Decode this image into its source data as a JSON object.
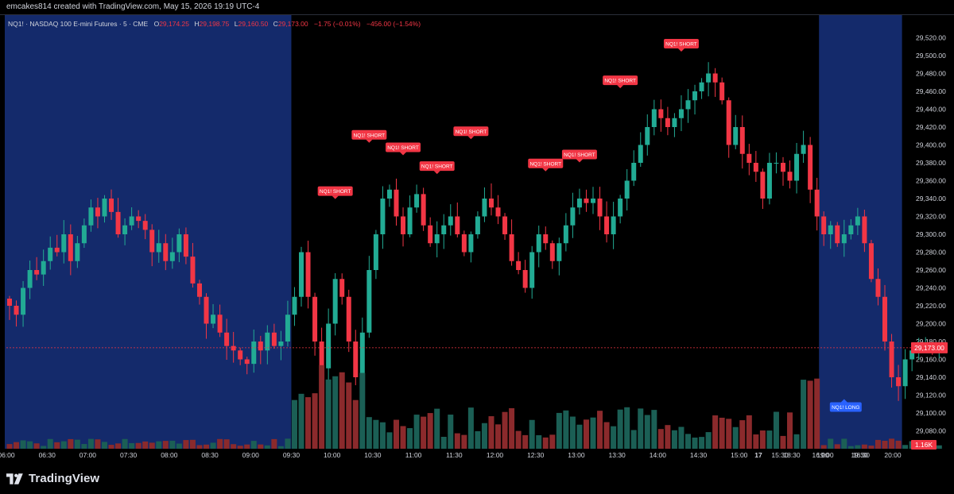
{
  "header": {
    "credit": "emcakes814 created with TradingView.com, May 15, 2026 19:19 UTC-4"
  },
  "legend": {
    "symbol": "NQ1! · NASDAQ 100 E-mini Futures · 5 · CME",
    "open_label": "O",
    "open": "29,174.25",
    "high_label": "H",
    "high": "29,198.75",
    "low_label": "L",
    "low": "29,160.50",
    "close_label": "C",
    "close": "29,173.00",
    "change": "−1.75 (−0.01%)",
    "change2": "−456.00 (−1.54%)"
  },
  "footer": {
    "brand": "TradingView"
  },
  "colors": {
    "up": "#22ab94",
    "down": "#f23645",
    "vol_up": "#1b5f55",
    "vol_down": "#8b2a2c",
    "session_shade": "#142a6b",
    "price_badge": "#f23645",
    "long_badge": "#2962ff"
  },
  "chart_data": {
    "type": "candlestick",
    "symbol": "NQ1!",
    "interval": "5",
    "ylim": [
      29060,
      29540
    ],
    "y_ticks": [
      29080,
      29100,
      29120,
      29140,
      29160,
      29180,
      29200,
      29220,
      29240,
      29260,
      29280,
      29300,
      29320,
      29340,
      29360,
      29380,
      29400,
      29420,
      29440,
      29460,
      29480,
      29500,
      29520
    ],
    "y_tick_labels": [
      "29,080.00",
      "29,100.00",
      "29,120.00",
      "29,140.00",
      "29,160.00",
      "29,180.00",
      "29,200.00",
      "29,220.00",
      "29,240.00",
      "29,260.00",
      "29,280.00",
      "29,300.00",
      "29,320.00",
      "29,340.00",
      "29,360.00",
      "29,380.00",
      "29,400.00",
      "29,420.00",
      "29,440.00",
      "29,460.00",
      "29,480.00",
      "29,500.00",
      "29,520.00"
    ],
    "x_ticks": [
      "06:00",
      "06:30",
      "07:00",
      "07:30",
      "08:00",
      "08:30",
      "09:00",
      "09:30",
      "10:00",
      "10:30",
      "11:00",
      "11:30",
      "12:00",
      "12:30",
      "13:00",
      "13:30",
      "14:00",
      "14:30",
      "15:00",
      "15:30",
      "16:00",
      "16:30",
      "17",
      "18:30",
      "19:00",
      "19:30",
      "20:00"
    ],
    "x_start": "06:00",
    "extended_hours_shaded": [
      "06:00-09:30",
      "16:00-17:00"
    ],
    "last_price": 29173.0,
    "last_price_label": "29,173.00",
    "volume_label": "1.16K",
    "close_path": [
      29220,
      29210,
      29240,
      29260,
      29255,
      29270,
      29285,
      29280,
      29300,
      29270,
      29290,
      29310,
      29330,
      29320,
      29340,
      29325,
      29300,
      29310,
      29320,
      29315,
      29305,
      29280,
      29290,
      29270,
      29280,
      29300,
      29275,
      29245,
      29230,
      29200,
      29210,
      29190,
      29175,
      29170,
      29160,
      29155,
      29180,
      29170,
      29190,
      29175,
      29180,
      29210,
      29230,
      29280,
      29230,
      29180,
      29150,
      29200,
      29250,
      29230,
      29180,
      29140,
      29190,
      29260,
      29300,
      29340,
      29350,
      29320,
      29300,
      29330,
      29345,
      29310,
      29290,
      29300,
      29310,
      29320,
      29300,
      29280,
      29300,
      29320,
      29340,
      29330,
      29320,
      29300,
      29270,
      29260,
      29240,
      29280,
      29300,
      29290,
      29270,
      29290,
      29310,
      29330,
      29340,
      29335,
      29340,
      29320,
      29300,
      29320,
      29340,
      29360,
      29380,
      29400,
      29420,
      29440,
      29430,
      29420,
      29430,
      29440,
      29450,
      29460,
      29470,
      29480,
      29470,
      29450,
      29400,
      29420,
      29390,
      29380,
      29370,
      29340,
      29380,
      29380,
      29370,
      29360,
      29390,
      29400,
      29350,
      29320,
      29300,
      29310,
      29290,
      29300,
      29310,
      29320,
      29290,
      29250,
      29230,
      29180,
      29140,
      29130,
      29160,
      29170,
      29175,
      29175,
      29173,
      29173
    ],
    "signals": [
      {
        "label": "NQ1! SHORT",
        "bar": 48,
        "price": 29343,
        "type": "short"
      },
      {
        "label": "NQ1! SHORT",
        "bar": 53,
        "price": 29406,
        "type": "short"
      },
      {
        "label": "NQ1! SHORT",
        "bar": 58,
        "price": 29392,
        "type": "short"
      },
      {
        "label": "NQ1! SHORT",
        "bar": 63,
        "price": 29371,
        "type": "short"
      },
      {
        "label": "NQ1! SHORT",
        "bar": 68,
        "price": 29410,
        "type": "short"
      },
      {
        "label": "NQ1! SHORT",
        "bar": 79,
        "price": 29374,
        "type": "short"
      },
      {
        "label": "NQ1! SHORT",
        "bar": 84,
        "price": 29384,
        "type": "short"
      },
      {
        "label": "NQ1! SHORT",
        "bar": 90,
        "price": 29467,
        "type": "short"
      },
      {
        "label": "NQ1! SHORT",
        "bar": 99,
        "price": 29508,
        "type": "short"
      },
      {
        "label": "NQ1! LONG",
        "bar": 123,
        "price": 29112,
        "type": "long"
      }
    ]
  }
}
